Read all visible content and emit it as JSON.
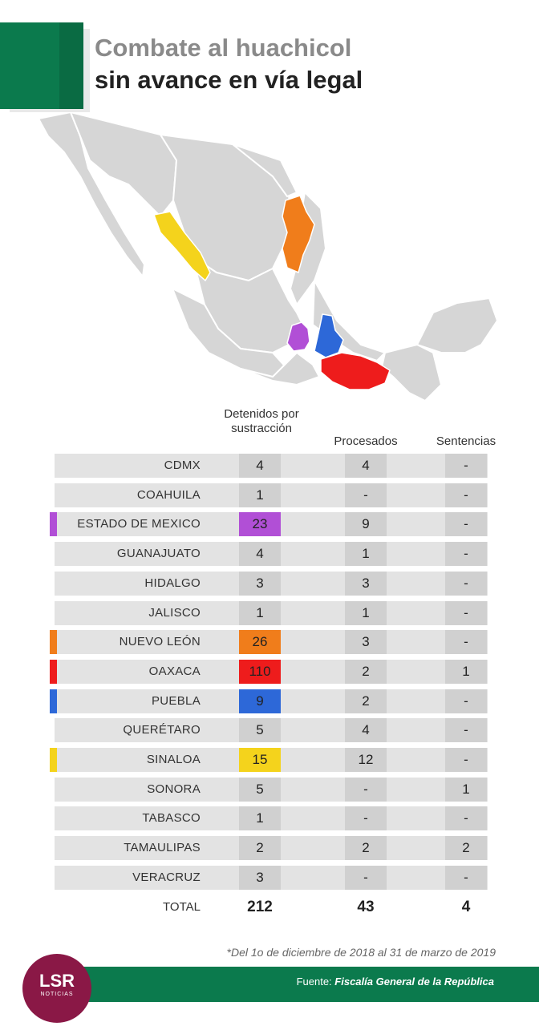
{
  "title": {
    "line1": "Combate al huachicol",
    "line2": "sin avance en vía legal"
  },
  "chart_data": {
    "type": "table",
    "columns": [
      "Detenidos por sustracción",
      "Procesados",
      "Sentencias"
    ],
    "rows": [
      {
        "state": "CDMX",
        "values": [
          "4",
          "4",
          "-"
        ],
        "color": null
      },
      {
        "state": "COAHUILA",
        "values": [
          "1",
          "-",
          "-"
        ],
        "color": null
      },
      {
        "state": "ESTADO DE MEXICO",
        "values": [
          "23",
          "9",
          "-"
        ],
        "color": "#b14fd6"
      },
      {
        "state": "GUANAJUATO",
        "values": [
          "4",
          "1",
          "-"
        ],
        "color": null
      },
      {
        "state": "HIDALGO",
        "values": [
          "3",
          "3",
          "-"
        ],
        "color": null
      },
      {
        "state": "JALISCO",
        "values": [
          "1",
          "1",
          "-"
        ],
        "color": null
      },
      {
        "state": "NUEVO LEÓN",
        "values": [
          "26",
          "3",
          "-"
        ],
        "color": "#f07d1b"
      },
      {
        "state": "OAXACA",
        "values": [
          "110",
          "2",
          "1"
        ],
        "color": "#ee1c1c"
      },
      {
        "state": "PUEBLA",
        "values": [
          "9",
          "2",
          "-"
        ],
        "color": "#2d68d8"
      },
      {
        "state": "QUERÉTARO",
        "values": [
          "5",
          "4",
          "-"
        ],
        "color": null
      },
      {
        "state": "SINALOA",
        "values": [
          "15",
          "12",
          "-"
        ],
        "color": "#f4d31c"
      },
      {
        "state": "SONORA",
        "values": [
          "5",
          "-",
          "1"
        ],
        "color": null
      },
      {
        "state": "TABASCO",
        "values": [
          "1",
          "-",
          "-"
        ],
        "color": null
      },
      {
        "state": "TAMAULIPAS",
        "values": [
          "2",
          "2",
          "2"
        ],
        "color": null
      },
      {
        "state": "VERACRUZ",
        "values": [
          "3",
          "-",
          "-"
        ],
        "color": null
      }
    ],
    "total": {
      "label": "TOTAL",
      "values": [
        "212",
        "43",
        "4"
      ]
    }
  },
  "note": "*Del 1o de diciembre de 2018 al 31 de marzo de 2019",
  "source": {
    "prefix": "Fuente:",
    "name": "Fiscalía General de la República"
  },
  "logo": {
    "main": "LSR",
    "sub": "NOTICIAS"
  },
  "colors": {
    "green": "#0b7a4d",
    "logo": "#8a1846"
  }
}
